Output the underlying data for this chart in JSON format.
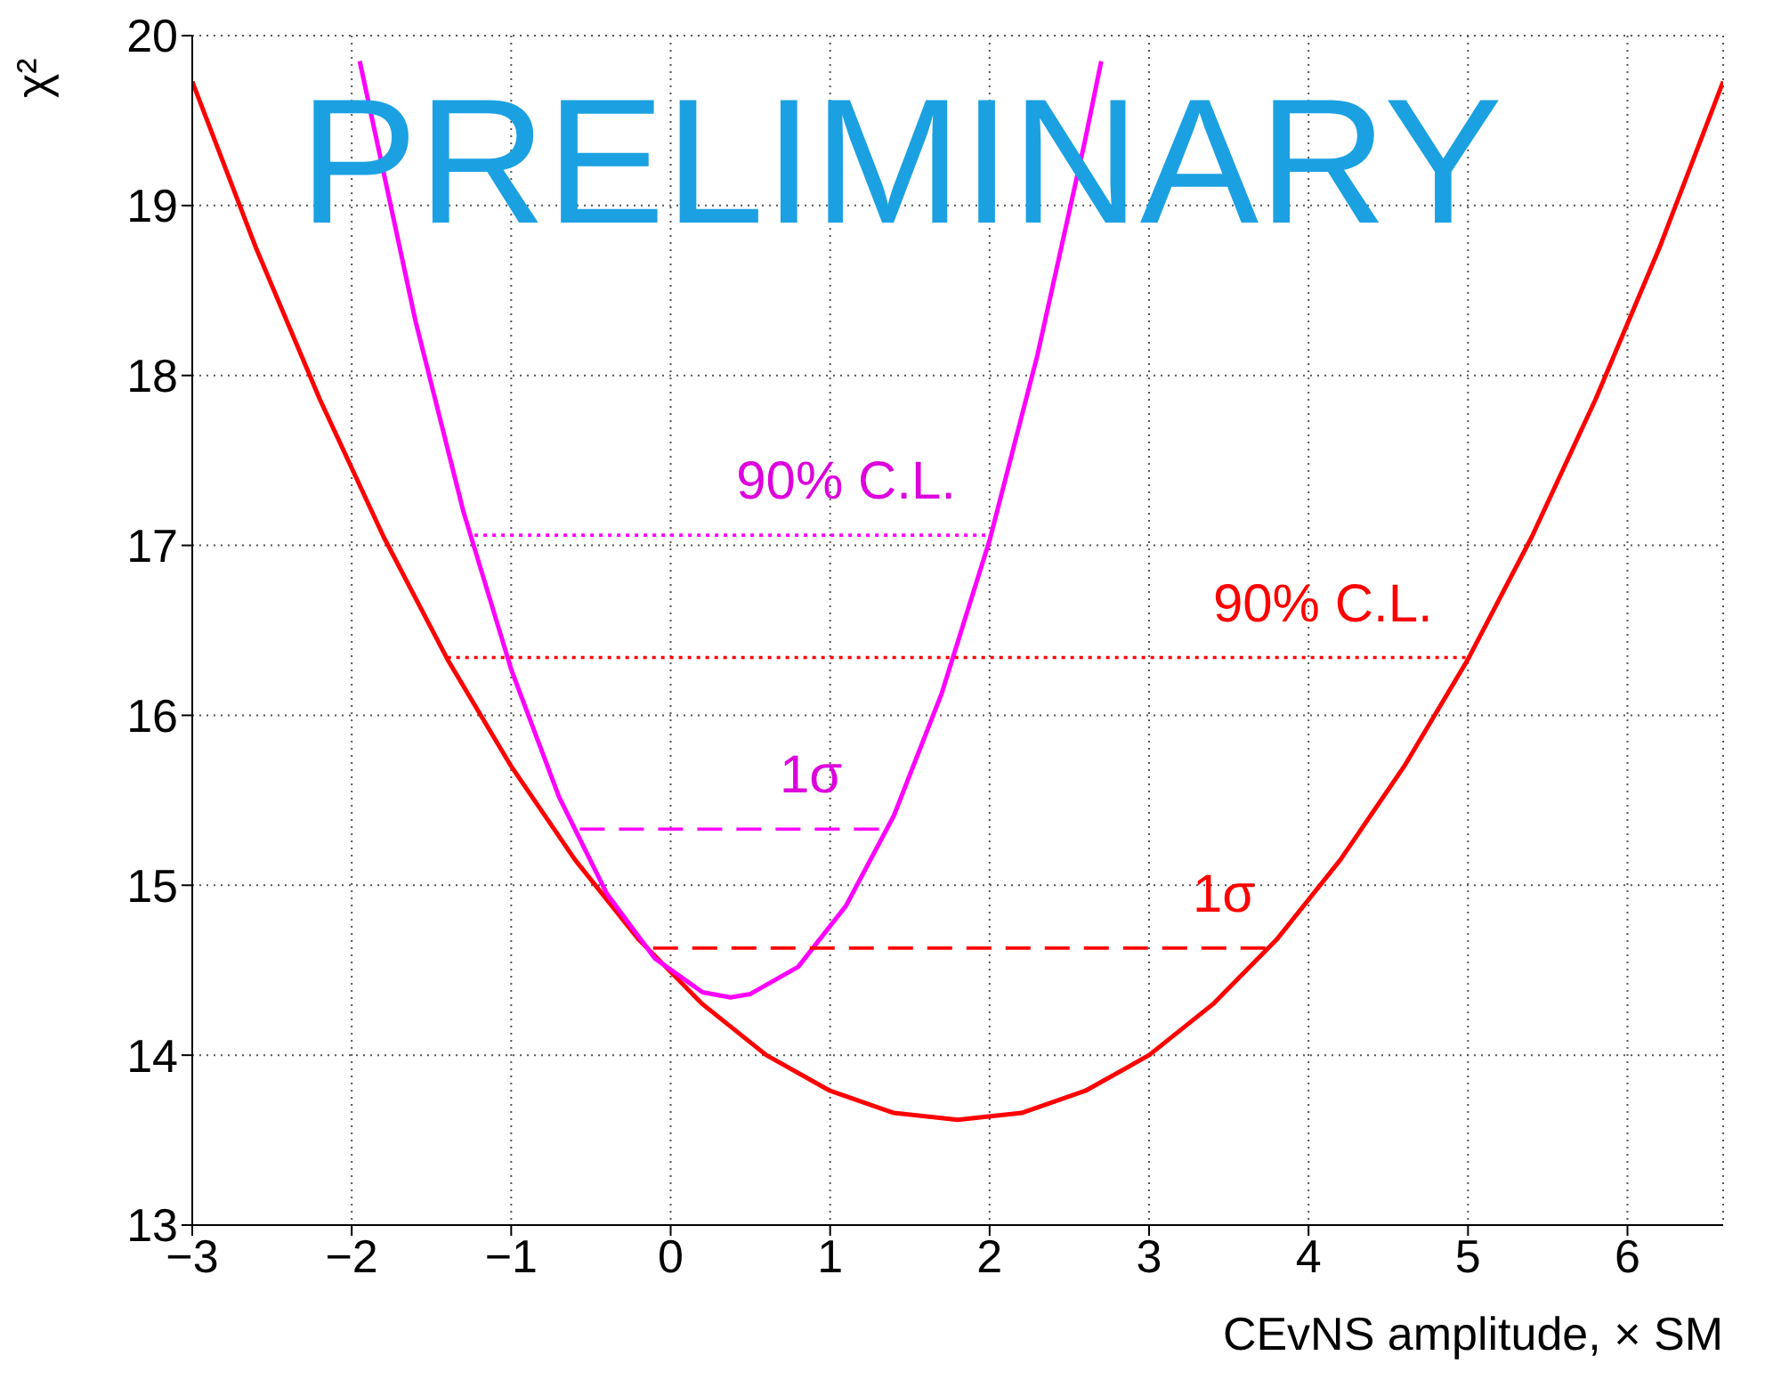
{
  "chart_data": {
    "type": "line",
    "xlabel": "CEvNS amplitude, × SM",
    "ylabel": "χ²",
    "xlim": [
      -3,
      6.6
    ],
    "ylim": [
      13,
      20
    ],
    "xticks": [
      -3,
      -2,
      -1,
      0,
      1,
      2,
      3,
      4,
      5,
      6
    ],
    "yticks": [
      13,
      14,
      15,
      16,
      17,
      18,
      19,
      20
    ],
    "grid": true,
    "marker": "none",
    "series": [
      {
        "color": "#ff0000",
        "line_style": "solid",
        "x": [
          -3,
          -2.6,
          -2.2,
          -1.8,
          -1.4,
          -1.0,
          -0.6,
          -0.2,
          0.2,
          0.6,
          1.0,
          1.4,
          1.8,
          2.2,
          2.6,
          3.0,
          3.4,
          3.8,
          4.2,
          4.6,
          5.0,
          5.4,
          5.8,
          6.2,
          6.6
        ],
        "values": [
          19.73,
          18.75,
          17.86,
          17.05,
          16.33,
          15.7,
          15.15,
          14.68,
          14.3,
          14.0,
          13.79,
          13.66,
          13.62,
          13.66,
          13.79,
          14.0,
          14.3,
          14.68,
          15.15,
          15.7,
          16.33,
          17.05,
          17.86,
          18.75,
          19.73
        ]
      },
      {
        "color": "#ff00ff",
        "line_style": "solid",
        "x": [
          -1.95,
          -1.6,
          -1.3,
          -1.0,
          -0.7,
          -0.4,
          -0.1,
          0.2,
          0.375,
          0.5,
          0.8,
          1.1,
          1.4,
          1.7,
          2.0,
          2.3,
          2.6,
          2.7
        ],
        "values": [
          19.85,
          18.32,
          17.2,
          16.27,
          15.52,
          14.95,
          14.57,
          14.37,
          14.34,
          14.36,
          14.52,
          14.88,
          15.41,
          16.13,
          17.03,
          18.12,
          19.39,
          19.85
        ]
      },
      {
        "color": "#ff0000",
        "line_style": "dashed",
        "x": [
          -0.11,
          3.77
        ],
        "values": [
          14.63,
          14.63
        ]
      },
      {
        "color": "#ff0000",
        "line_style": "dotted",
        "x": [
          -1.4,
          5.0
        ],
        "values": [
          16.34,
          16.34
        ]
      },
      {
        "color": "#ff00ff",
        "line_style": "dashed",
        "x": [
          -0.57,
          1.36
        ],
        "values": [
          15.33,
          15.33
        ]
      },
      {
        "color": "#ff00ff",
        "line_style": "dotted",
        "x": [
          -1.23,
          2.01
        ],
        "values": [
          17.06,
          17.06
        ]
      }
    ],
    "annotations": [
      "PRELIMINARY",
      {
        "text": "90% C.L.",
        "x": 1.1,
        "y": 17.06
      },
      {
        "text": "1σ",
        "x": 0.88,
        "y": 15.33
      },
      {
        "text": "90% C.L.",
        "x": 4.09,
        "y": 16.34
      },
      {
        "text": "1σ",
        "x": 3.47,
        "y": 14.63
      }
    ]
  }
}
